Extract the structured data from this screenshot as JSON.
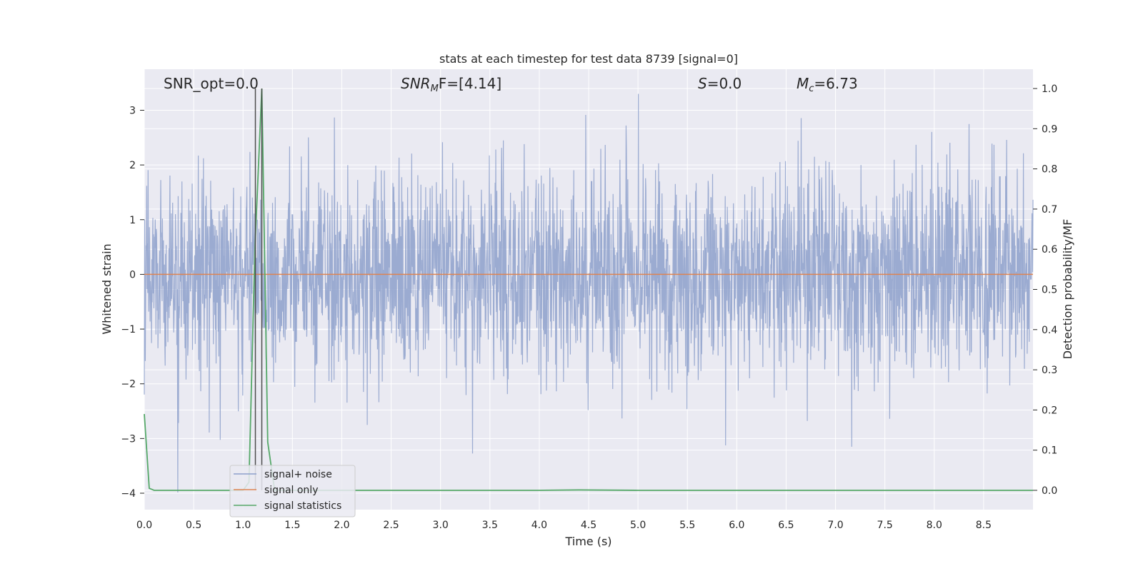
{
  "chart_data": {
    "type": "line",
    "title": "stats at each timestep for test data 8739 [signal=0]",
    "xlabel": "Time (s)",
    "ylabel_left": "Whitened strain",
    "ylabel_right": "Detection probability/MF",
    "xlim": [
      0.0,
      9.0
    ],
    "ylim_left": [
      -4.3,
      3.75
    ],
    "ylim_right": [
      -0.048,
      1.048
    ],
    "x_ticks": [
      "0.0",
      "0.5",
      "1.0",
      "1.5",
      "2.0",
      "2.5",
      "3.0",
      "3.5",
      "4.0",
      "4.5",
      "5.0",
      "5.5",
      "6.0",
      "6.5",
      "7.0",
      "7.5",
      "8.0",
      "8.5"
    ],
    "x_tick_values": [
      0.0,
      0.5,
      1.0,
      1.5,
      2.0,
      2.5,
      3.0,
      3.5,
      4.0,
      4.5,
      5.0,
      5.5,
      6.0,
      6.5,
      7.0,
      7.5,
      8.0,
      8.5
    ],
    "y_left_ticks": [
      "3",
      "2",
      "1",
      "0",
      "−1",
      "−2",
      "−3",
      "−4"
    ],
    "y_left_tick_values": [
      3,
      2,
      1,
      0,
      -1,
      -2,
      -3,
      -4
    ],
    "y_right_ticks": [
      "1.0",
      "0.9",
      "0.8",
      "0.7",
      "0.6",
      "0.5",
      "0.4",
      "0.3",
      "0.2",
      "0.1",
      "0.0"
    ],
    "y_right_tick_values": [
      1.0,
      0.9,
      0.8,
      0.7,
      0.6,
      0.5,
      0.4,
      0.3,
      0.2,
      0.1,
      0.0
    ],
    "grid": true,
    "legend_placement": "lower-left",
    "annotations": {
      "snr_opt": "SNR_opt=0.0",
      "snr_mf_base": "SNR",
      "snr_mf_sub": "M",
      "snr_mf_rest": "F=[4.14]",
      "s_var": "S",
      "s_rest": "=0.0",
      "mc_var": "M",
      "mc_sub": "c",
      "mc_rest": "=6.73"
    },
    "vertical_lines_x": [
      1.125,
      1.19
    ],
    "series": [
      {
        "name": "signal+ noise",
        "axis": "left",
        "color": "#8da0cb",
        "note_shape": "whitened gaussian noise, roughly within ±2.7 with peaks to about 3.3 and dips to about -4.0",
        "envelope_core": [
          -1.0,
          1.0
        ]
      },
      {
        "name": "signal only",
        "axis": "left",
        "color": "#dd8452",
        "x": [
          0.0,
          9.0
        ],
        "values": [
          0.0,
          0.0
        ]
      },
      {
        "name": "signal statistics",
        "axis": "right",
        "color": "#55a868",
        "x": [
          0.0,
          0.05,
          0.1,
          1.0,
          1.06,
          1.12,
          1.19,
          1.25,
          1.32,
          1.4,
          2.0,
          3.0,
          4.0,
          4.4,
          5.0,
          6.0,
          7.0,
          8.0,
          9.0
        ],
        "values": [
          0.19,
          0.005,
          0.0,
          0.0,
          0.02,
          0.6,
          1.0,
          0.12,
          0.0,
          0.0,
          0.0,
          0.0,
          0.0,
          0.001,
          0.0,
          0.0,
          0.0,
          0.0,
          0.0
        ]
      }
    ]
  },
  "colors": {
    "plot_bg": "#eaeaf2",
    "grid": "#ffffff",
    "vline": "#4d4d4d"
  }
}
